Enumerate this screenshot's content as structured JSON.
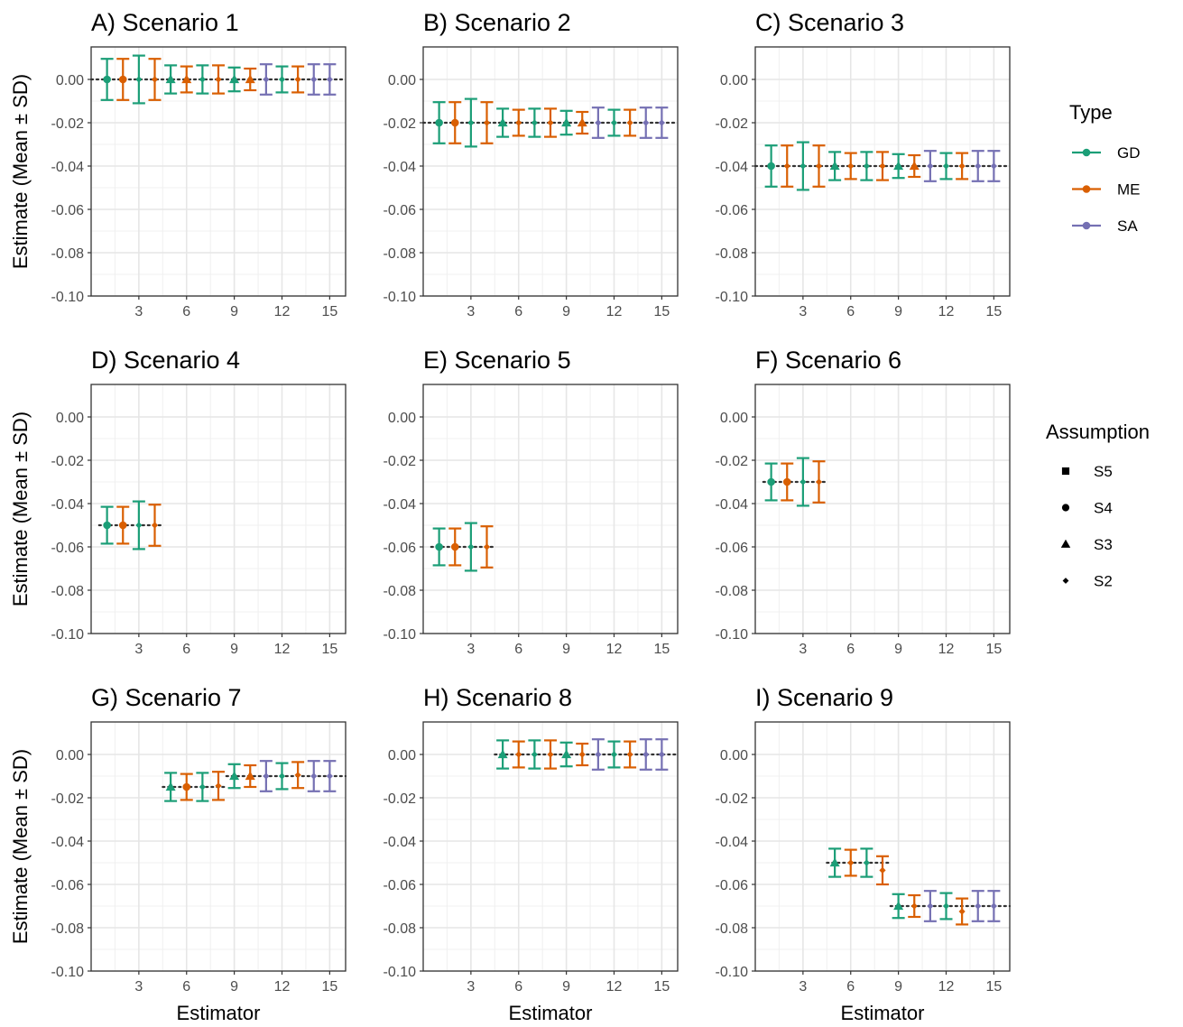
{
  "colors": {
    "GD": "#1b9e77",
    "ME": "#d95f02",
    "SA": "#7570b3",
    "ref_line": "#333333"
  },
  "chart_data": {
    "type": "scatter",
    "facet_layout": {
      "rows": 3,
      "cols": 3
    },
    "xlabel": "Estimator",
    "ylabel": "Estimate (Mean ± SD)",
    "xlim": [
      0,
      16
    ],
    "ylim": [
      -0.1,
      0.015
    ],
    "x_ticks": [
      3,
      6,
      9,
      12,
      15
    ],
    "y_ticks": [
      0.0,
      -0.02,
      -0.04,
      -0.06,
      -0.08,
      -0.1
    ],
    "y_tick_labels": [
      "0.00",
      "-0.02",
      "-0.04",
      "-0.06",
      "-0.08",
      "-0.10"
    ],
    "grid": true,
    "legend": {
      "position": "right",
      "type_title": "Type",
      "type_entries": [
        "GD",
        "ME",
        "SA"
      ],
      "assumption_title": "Assumption",
      "assumption_entries": [
        {
          "label": "S5",
          "shape": "square"
        },
        {
          "label": "S4",
          "shape": "circle"
        },
        {
          "label": "S3",
          "shape": "triangle"
        },
        {
          "label": "S2",
          "shape": "diamond"
        }
      ]
    },
    "panels": [
      {
        "title": "A) Scenario 1",
        "ref_lines": [
          {
            "y": 0.0,
            "x_from": 0,
            "x_to": 16
          }
        ],
        "points": [
          {
            "x": 1,
            "mean": 0.0,
            "sd": 0.0095,
            "type": "GD",
            "assumption": "S4"
          },
          {
            "x": 2,
            "mean": 0.0,
            "sd": 0.0095,
            "type": "ME",
            "assumption": "S4"
          },
          {
            "x": 3,
            "mean": 0.0,
            "sd": 0.011,
            "type": "GD",
            "assumption": "S2"
          },
          {
            "x": 4,
            "mean": 0.0,
            "sd": 0.0095,
            "type": "ME",
            "assumption": "S2"
          },
          {
            "x": 5,
            "mean": 0.0,
            "sd": 0.0065,
            "type": "GD",
            "assumption": "S3"
          },
          {
            "x": 6,
            "mean": 0.0,
            "sd": 0.006,
            "type": "ME",
            "assumption": "S3"
          },
          {
            "x": 7,
            "mean": 0.0,
            "sd": 0.0065,
            "type": "GD",
            "assumption": "S2"
          },
          {
            "x": 8,
            "mean": 0.0,
            "sd": 0.0065,
            "type": "ME",
            "assumption": "S2"
          },
          {
            "x": 9,
            "mean": 0.0,
            "sd": 0.0055,
            "type": "GD",
            "assumption": "S3"
          },
          {
            "x": 10,
            "mean": 0.0,
            "sd": 0.005,
            "type": "ME",
            "assumption": "S3"
          },
          {
            "x": 11,
            "mean": 0.0,
            "sd": 0.007,
            "type": "SA",
            "assumption": "S2"
          },
          {
            "x": 12,
            "mean": 0.0,
            "sd": 0.006,
            "type": "GD",
            "assumption": "S2"
          },
          {
            "x": 13,
            "mean": 0.0,
            "sd": 0.006,
            "type": "ME",
            "assumption": "S2"
          },
          {
            "x": 14,
            "mean": 0.0,
            "sd": 0.007,
            "type": "SA",
            "assumption": "S2"
          },
          {
            "x": 15,
            "mean": 0.0,
            "sd": 0.007,
            "type": "SA",
            "assumption": "S2"
          }
        ]
      },
      {
        "title": "B) Scenario 2",
        "ref_lines": [
          {
            "y": -0.02,
            "x_from": 0,
            "x_to": 16
          }
        ],
        "points": [
          {
            "x": 1,
            "mean": -0.02,
            "sd": 0.0095,
            "type": "GD",
            "assumption": "S4"
          },
          {
            "x": 2,
            "mean": -0.02,
            "sd": 0.0095,
            "type": "ME",
            "assumption": "S4"
          },
          {
            "x": 3,
            "mean": -0.02,
            "sd": 0.011,
            "type": "GD",
            "assumption": "S2"
          },
          {
            "x": 4,
            "mean": -0.02,
            "sd": 0.0095,
            "type": "ME",
            "assumption": "S2"
          },
          {
            "x": 5,
            "mean": -0.02,
            "sd": 0.0065,
            "type": "GD",
            "assumption": "S3"
          },
          {
            "x": 6,
            "mean": -0.02,
            "sd": 0.006,
            "type": "ME",
            "assumption": "S2"
          },
          {
            "x": 7,
            "mean": -0.02,
            "sd": 0.0065,
            "type": "GD",
            "assumption": "S2"
          },
          {
            "x": 8,
            "mean": -0.02,
            "sd": 0.0065,
            "type": "ME",
            "assumption": "S2"
          },
          {
            "x": 9,
            "mean": -0.02,
            "sd": 0.0055,
            "type": "GD",
            "assumption": "S3"
          },
          {
            "x": 10,
            "mean": -0.02,
            "sd": 0.005,
            "type": "ME",
            "assumption": "S3"
          },
          {
            "x": 11,
            "mean": -0.02,
            "sd": 0.007,
            "type": "SA",
            "assumption": "S2"
          },
          {
            "x": 12,
            "mean": -0.02,
            "sd": 0.006,
            "type": "GD",
            "assumption": "S2"
          },
          {
            "x": 13,
            "mean": -0.02,
            "sd": 0.006,
            "type": "ME",
            "assumption": "S2"
          },
          {
            "x": 14,
            "mean": -0.02,
            "sd": 0.007,
            "type": "SA",
            "assumption": "S2"
          },
          {
            "x": 15,
            "mean": -0.02,
            "sd": 0.007,
            "type": "SA",
            "assumption": "S2"
          }
        ]
      },
      {
        "title": "C) Scenario 3",
        "ref_lines": [
          {
            "y": -0.04,
            "x_from": 0,
            "x_to": 16
          }
        ],
        "points": [
          {
            "x": 1,
            "mean": -0.04,
            "sd": 0.0095,
            "type": "GD",
            "assumption": "S4"
          },
          {
            "x": 2,
            "mean": -0.04,
            "sd": 0.0095,
            "type": "ME",
            "assumption": "S2"
          },
          {
            "x": 3,
            "mean": -0.04,
            "sd": 0.011,
            "type": "GD",
            "assumption": "S2"
          },
          {
            "x": 4,
            "mean": -0.04,
            "sd": 0.0095,
            "type": "ME",
            "assumption": "S2"
          },
          {
            "x": 5,
            "mean": -0.04,
            "sd": 0.0065,
            "type": "GD",
            "assumption": "S3"
          },
          {
            "x": 6,
            "mean": -0.04,
            "sd": 0.006,
            "type": "ME",
            "assumption": "S2"
          },
          {
            "x": 7,
            "mean": -0.04,
            "sd": 0.0065,
            "type": "GD",
            "assumption": "S2"
          },
          {
            "x": 8,
            "mean": -0.04,
            "sd": 0.0065,
            "type": "ME",
            "assumption": "S2"
          },
          {
            "x": 9,
            "mean": -0.04,
            "sd": 0.0055,
            "type": "GD",
            "assumption": "S3"
          },
          {
            "x": 10,
            "mean": -0.04,
            "sd": 0.005,
            "type": "ME",
            "assumption": "S3"
          },
          {
            "x": 11,
            "mean": -0.04,
            "sd": 0.007,
            "type": "SA",
            "assumption": "S2"
          },
          {
            "x": 12,
            "mean": -0.04,
            "sd": 0.006,
            "type": "GD",
            "assumption": "S2"
          },
          {
            "x": 13,
            "mean": -0.04,
            "sd": 0.006,
            "type": "ME",
            "assumption": "S2"
          },
          {
            "x": 14,
            "mean": -0.04,
            "sd": 0.007,
            "type": "SA",
            "assumption": "S2"
          },
          {
            "x": 15,
            "mean": -0.04,
            "sd": 0.007,
            "type": "SA",
            "assumption": "S2"
          }
        ]
      },
      {
        "title": "D) Scenario 4",
        "ref_lines": [
          {
            "y": -0.05,
            "x_from": 0.5,
            "x_to": 4.5
          }
        ],
        "points": [
          {
            "x": 1,
            "mean": -0.05,
            "sd": 0.0085,
            "type": "GD",
            "assumption": "S4"
          },
          {
            "x": 2,
            "mean": -0.05,
            "sd": 0.0085,
            "type": "ME",
            "assumption": "S4"
          },
          {
            "x": 3,
            "mean": -0.05,
            "sd": 0.011,
            "type": "GD",
            "assumption": "S2"
          },
          {
            "x": 4,
            "mean": -0.05,
            "sd": 0.0095,
            "type": "ME",
            "assumption": "S2"
          }
        ]
      },
      {
        "title": "E) Scenario 5",
        "ref_lines": [
          {
            "y": -0.06,
            "x_from": 0.5,
            "x_to": 4.5
          }
        ],
        "points": [
          {
            "x": 1,
            "mean": -0.06,
            "sd": 0.0085,
            "type": "GD",
            "assumption": "S4"
          },
          {
            "x": 2,
            "mean": -0.06,
            "sd": 0.0085,
            "type": "ME",
            "assumption": "S4"
          },
          {
            "x": 3,
            "mean": -0.06,
            "sd": 0.011,
            "type": "GD",
            "assumption": "S2"
          },
          {
            "x": 4,
            "mean": -0.06,
            "sd": 0.0095,
            "type": "ME",
            "assumption": "S2"
          }
        ]
      },
      {
        "title": "F) Scenario 6",
        "ref_lines": [
          {
            "y": -0.03,
            "x_from": 0.5,
            "x_to": 4.5
          }
        ],
        "points": [
          {
            "x": 1,
            "mean": -0.03,
            "sd": 0.0085,
            "type": "GD",
            "assumption": "S4"
          },
          {
            "x": 2,
            "mean": -0.03,
            "sd": 0.0085,
            "type": "ME",
            "assumption": "S4"
          },
          {
            "x": 3,
            "mean": -0.03,
            "sd": 0.011,
            "type": "GD",
            "assumption": "S2"
          },
          {
            "x": 4,
            "mean": -0.03,
            "sd": 0.0095,
            "type": "ME",
            "assumption": "S2"
          }
        ]
      },
      {
        "title": "G) Scenario 7",
        "ref_lines": [
          {
            "y": -0.015,
            "x_from": 4.5,
            "x_to": 8.5
          },
          {
            "y": -0.01,
            "x_from": 8.5,
            "x_to": 16
          }
        ],
        "points": [
          {
            "x": 5,
            "mean": -0.015,
            "sd": 0.0065,
            "type": "GD",
            "assumption": "S3"
          },
          {
            "x": 6,
            "mean": -0.015,
            "sd": 0.006,
            "type": "ME",
            "assumption": "S4"
          },
          {
            "x": 7,
            "mean": -0.015,
            "sd": 0.0065,
            "type": "GD",
            "assumption": "S2"
          },
          {
            "x": 8,
            "mean": -0.0145,
            "sd": 0.0065,
            "type": "ME",
            "assumption": "S2"
          },
          {
            "x": 9,
            "mean": -0.01,
            "sd": 0.0055,
            "type": "GD",
            "assumption": "S3"
          },
          {
            "x": 10,
            "mean": -0.01,
            "sd": 0.005,
            "type": "ME",
            "assumption": "S3"
          },
          {
            "x": 11,
            "mean": -0.01,
            "sd": 0.007,
            "type": "SA",
            "assumption": "S2"
          },
          {
            "x": 12,
            "mean": -0.01,
            "sd": 0.006,
            "type": "GD",
            "assumption": "S2"
          },
          {
            "x": 13,
            "mean": -0.0095,
            "sd": 0.006,
            "type": "ME",
            "assumption": "S2"
          },
          {
            "x": 14,
            "mean": -0.01,
            "sd": 0.007,
            "type": "SA",
            "assumption": "S2"
          },
          {
            "x": 15,
            "mean": -0.01,
            "sd": 0.007,
            "type": "SA",
            "assumption": "S2"
          }
        ]
      },
      {
        "title": "H) Scenario 8",
        "ref_lines": [
          {
            "y": 0.0,
            "x_from": 4.5,
            "x_to": 16
          }
        ],
        "points": [
          {
            "x": 5,
            "mean": 0.0,
            "sd": 0.0065,
            "type": "GD",
            "assumption": "S3"
          },
          {
            "x": 6,
            "mean": 0.0,
            "sd": 0.006,
            "type": "ME",
            "assumption": "S2"
          },
          {
            "x": 7,
            "mean": 0.0,
            "sd": 0.0065,
            "type": "GD",
            "assumption": "S2"
          },
          {
            "x": 8,
            "mean": 0.0,
            "sd": 0.0065,
            "type": "ME",
            "assumption": "S2"
          },
          {
            "x": 9,
            "mean": 0.0,
            "sd": 0.0055,
            "type": "GD",
            "assumption": "S3"
          },
          {
            "x": 10,
            "mean": 0.0,
            "sd": 0.005,
            "type": "ME",
            "assumption": "S2"
          },
          {
            "x": 11,
            "mean": 0.0,
            "sd": 0.007,
            "type": "SA",
            "assumption": "S2"
          },
          {
            "x": 12,
            "mean": 0.0,
            "sd": 0.006,
            "type": "GD",
            "assumption": "S2"
          },
          {
            "x": 13,
            "mean": 0.0,
            "sd": 0.006,
            "type": "ME",
            "assumption": "S2"
          },
          {
            "x": 14,
            "mean": 0.0,
            "sd": 0.007,
            "type": "SA",
            "assumption": "S2"
          },
          {
            "x": 15,
            "mean": 0.0,
            "sd": 0.007,
            "type": "SA",
            "assumption": "S2"
          }
        ]
      },
      {
        "title": "I) Scenario 9",
        "ref_lines": [
          {
            "y": -0.05,
            "x_from": 4.5,
            "x_to": 8.5
          },
          {
            "y": -0.07,
            "x_from": 8.5,
            "x_to": 16
          }
        ],
        "points": [
          {
            "x": 5,
            "mean": -0.05,
            "sd": 0.0065,
            "type": "GD",
            "assumption": "S3"
          },
          {
            "x": 6,
            "mean": -0.05,
            "sd": 0.006,
            "type": "ME",
            "assumption": "S2"
          },
          {
            "x": 7,
            "mean": -0.05,
            "sd": 0.0065,
            "type": "GD",
            "assumption": "S2"
          },
          {
            "x": 8,
            "mean": -0.0535,
            "sd": 0.0065,
            "type": "ME",
            "assumption": "S2"
          },
          {
            "x": 9,
            "mean": -0.07,
            "sd": 0.0055,
            "type": "GD",
            "assumption": "S3"
          },
          {
            "x": 10,
            "mean": -0.07,
            "sd": 0.005,
            "type": "ME",
            "assumption": "S2"
          },
          {
            "x": 11,
            "mean": -0.07,
            "sd": 0.007,
            "type": "SA",
            "assumption": "S2"
          },
          {
            "x": 12,
            "mean": -0.07,
            "sd": 0.006,
            "type": "GD",
            "assumption": "S2"
          },
          {
            "x": 13,
            "mean": -0.0725,
            "sd": 0.006,
            "type": "ME",
            "assumption": "S2"
          },
          {
            "x": 14,
            "mean": -0.07,
            "sd": 0.007,
            "type": "SA",
            "assumption": "S2"
          },
          {
            "x": 15,
            "mean": -0.07,
            "sd": 0.007,
            "type": "SA",
            "assumption": "S2"
          }
        ]
      }
    ]
  }
}
